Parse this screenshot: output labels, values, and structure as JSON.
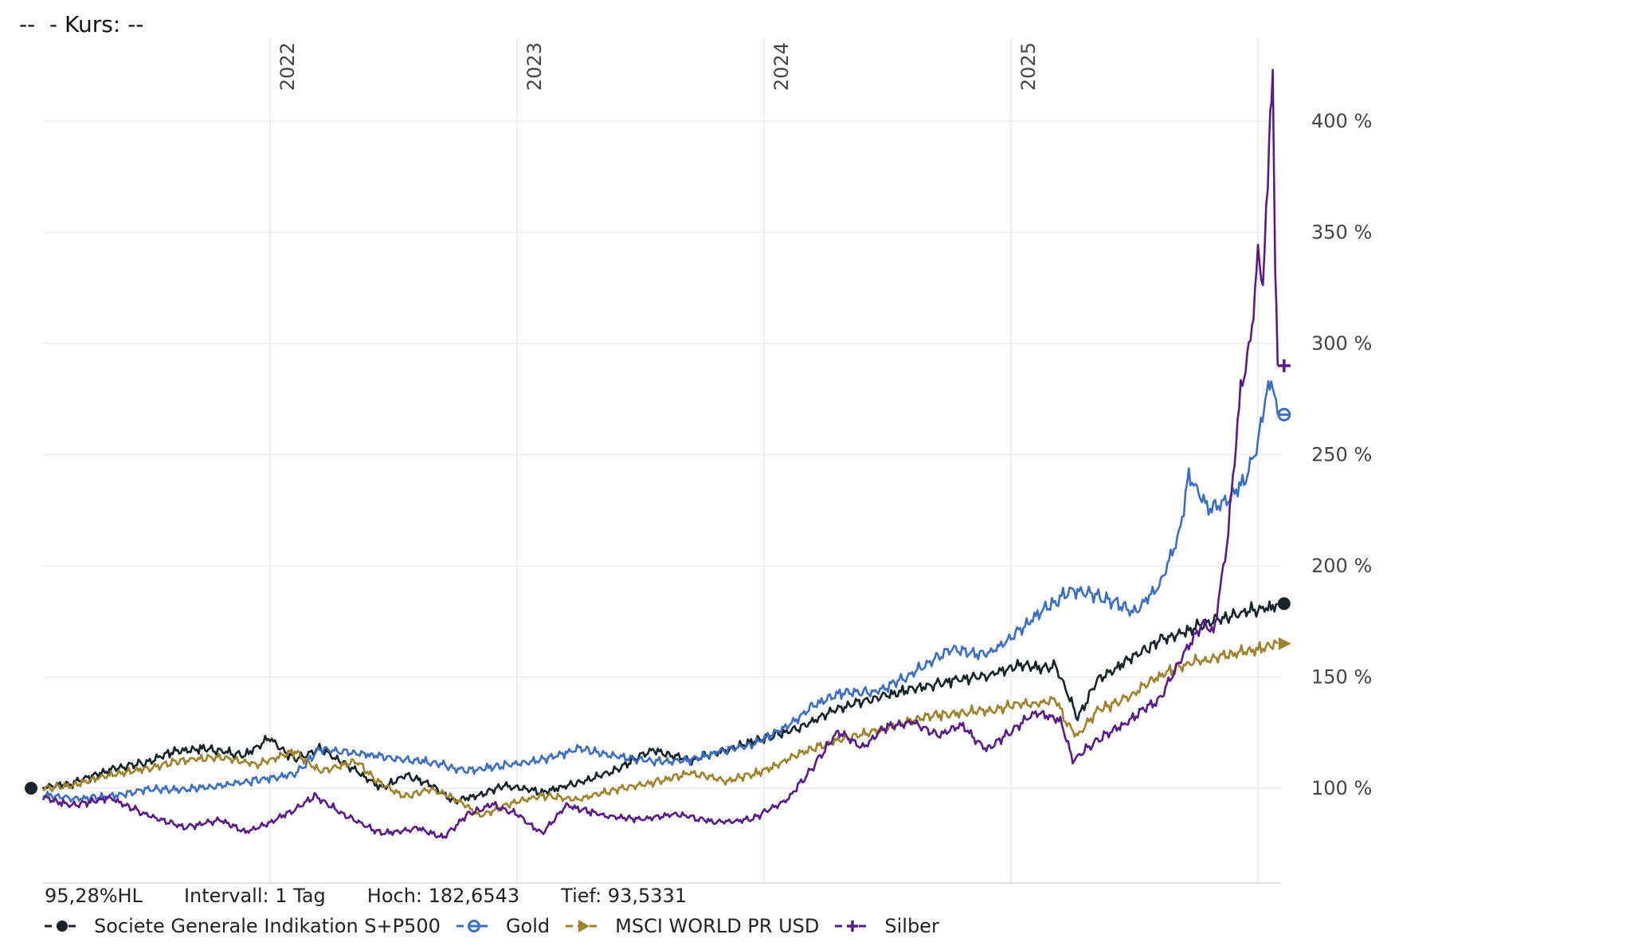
{
  "header": {
    "title": "--  - Kurs: --"
  },
  "info": {
    "change": "95,28%HL",
    "interval": "Intervall: 1 Tag",
    "high": "Hoch: 182,6543",
    "low": "Tief: 93,5331"
  },
  "chart_data": {
    "type": "line",
    "title": "--  - Kurs: --",
    "xlabel": "",
    "ylabel": "",
    "y_unit": "%",
    "ylim": [
      57,
      420
    ],
    "xlim": [
      2021.08,
      2026.08
    ],
    "yticks": [
      100,
      150,
      200,
      250,
      300,
      350,
      400
    ],
    "ytick_labels": [
      "100 %",
      "150 %",
      "200 %",
      "250 %",
      "300 %",
      "350 %",
      "400 %"
    ],
    "xticks": [
      2022,
      2023,
      2024,
      2025,
      2026
    ],
    "xtick_labels": [
      "2022",
      "2023",
      "2024",
      "2025",
      ""
    ],
    "grid": true,
    "legend": "bottom-left",
    "series": [
      {
        "name": "Societe Generale Indikation S+P500",
        "color": "#16242c",
        "marker": "circle",
        "x": [
          2021.08,
          2021.2,
          2021.35,
          2021.5,
          2021.6,
          2021.75,
          2021.9,
          2022.0,
          2022.1,
          2022.2,
          2022.35,
          2022.45,
          2022.55,
          2022.65,
          2022.75,
          2022.85,
          2022.95,
          2023.1,
          2023.25,
          2023.4,
          2023.55,
          2023.7,
          2023.85,
          2024.0,
          2024.15,
          2024.3,
          2024.45,
          2024.6,
          2024.75,
          2024.9,
          2025.0,
          2025.1,
          2025.18,
          2025.22,
          2025.27,
          2025.35,
          2025.5,
          2025.6,
          2025.7,
          2025.8,
          2025.9,
          2026.0,
          2026.08
        ],
        "y": [
          100,
          102,
          108,
          112,
          116,
          118,
          115,
          122,
          113,
          118,
          108,
          100,
          106,
          102,
          94,
          97,
          101,
          98,
          103,
          108,
          117,
          113,
          117,
          122,
          128,
          136,
          140,
          145,
          148,
          150,
          155,
          154,
          155,
          145,
          132,
          148,
          160,
          166,
          171,
          174,
          178,
          180,
          183
        ]
      },
      {
        "name": "Gold",
        "color": "#3a6fc4",
        "marker": "circle-half",
        "x": [
          2021.08,
          2021.2,
          2021.35,
          2021.5,
          2021.65,
          2021.8,
          2021.95,
          2022.1,
          2022.2,
          2022.35,
          2022.5,
          2022.65,
          2022.8,
          2022.95,
          2023.1,
          2023.25,
          2023.4,
          2023.55,
          2023.7,
          2023.85,
          2023.95,
          2024.1,
          2024.2,
          2024.3,
          2024.45,
          2024.6,
          2024.75,
          2024.9,
          2025.0,
          2025.12,
          2025.25,
          2025.38,
          2025.5,
          2025.6,
          2025.68,
          2025.72,
          2025.8,
          2025.88,
          2025.95,
          2026.0,
          2026.03,
          2026.06,
          2026.08
        ],
        "y": [
          97,
          95,
          96,
          100,
          99,
          101,
          104,
          106,
          118,
          116,
          113,
          112,
          108,
          110,
          113,
          118,
          114,
          112,
          113,
          117,
          120,
          128,
          138,
          142,
          143,
          152,
          162,
          160,
          168,
          180,
          190,
          185,
          180,
          190,
          215,
          240,
          225,
          230,
          240,
          255,
          275,
          285,
          268
        ]
      },
      {
        "name": "MSCI WORLD PR USD",
        "color": "#a0822a",
        "marker": "triangle",
        "x": [
          2021.08,
          2021.2,
          2021.35,
          2021.5,
          2021.65,
          2021.8,
          2021.95,
          2022.1,
          2022.2,
          2022.35,
          2022.45,
          2022.55,
          2022.65,
          2022.75,
          2022.85,
          2022.95,
          2023.1,
          2023.25,
          2023.4,
          2023.55,
          2023.7,
          2023.85,
          2024.0,
          2024.15,
          2024.3,
          2024.45,
          2024.6,
          2024.75,
          2024.9,
          2025.0,
          2025.1,
          2025.18,
          2025.22,
          2025.27,
          2025.35,
          2025.5,
          2025.6,
          2025.7,
          2025.8,
          2025.9,
          2026.0,
          2026.08
        ],
        "y": [
          100,
          101,
          106,
          109,
          112,
          114,
          111,
          116,
          108,
          112,
          102,
          96,
          100,
          95,
          88,
          92,
          97,
          95,
          99,
          103,
          107,
          103,
          108,
          116,
          121,
          126,
          131,
          133,
          135,
          137,
          138,
          140,
          130,
          123,
          135,
          143,
          150,
          155,
          158,
          160,
          163,
          165
        ]
      },
      {
        "name": "Silber",
        "color": "#5a1a8a",
        "marker": "plus",
        "x": [
          2021.08,
          2021.2,
          2021.35,
          2021.5,
          2021.65,
          2021.8,
          2021.9,
          2022.0,
          2022.1,
          2022.18,
          2022.3,
          2022.45,
          2022.6,
          2022.7,
          2022.8,
          2022.9,
          2023.0,
          2023.1,
          2023.2,
          2023.35,
          2023.5,
          2023.65,
          2023.8,
          2023.95,
          2024.1,
          2024.2,
          2024.3,
          2024.4,
          2024.5,
          2024.6,
          2024.7,
          2024.8,
          2024.9,
          2025.0,
          2025.1,
          2025.2,
          2025.25,
          2025.35,
          2025.5,
          2025.6,
          2025.7,
          2025.78,
          2025.82,
          2025.88,
          2025.93,
          2025.97,
          2026.0,
          2026.02,
          2026.04,
          2026.05,
          2026.06,
          2026.07,
          2026.08
        ],
        "y": [
          96,
          92,
          96,
          88,
          82,
          86,
          80,
          85,
          90,
          97,
          88,
          80,
          82,
          78,
          88,
          93,
          88,
          80,
          92,
          88,
          86,
          88,
          85,
          86,
          95,
          110,
          125,
          118,
          128,
          130,
          124,
          128,
          118,
          125,
          135,
          130,
          112,
          122,
          132,
          140,
          160,
          175,
          170,
          215,
          280,
          300,
          340,
          330,
          370,
          410,
          420,
          330,
          290
        ]
      }
    ]
  }
}
